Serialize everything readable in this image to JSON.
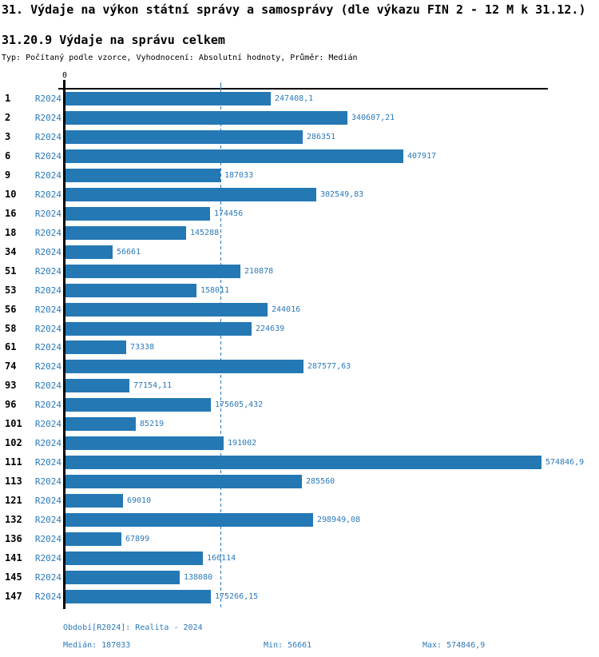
{
  "header": {
    "title": "31. Výdaje na výkon státní správy a samosprávy (dle výkazu FIN 2 - 12 M k 31.12.)",
    "subtitle": "31.20.9 Výdaje na správu celkem",
    "meta": "Typ: Počítaný podle vzorce, Vyhodnocení: Absolutní hodnoty, Průměr: Medián"
  },
  "chart_data": {
    "type": "bar",
    "orientation": "horizontal",
    "title": "31.20.9 Výdaje na správu celkem",
    "series_label": "R2024",
    "axis_zero_label": "0",
    "categories": [
      "1",
      "2",
      "3",
      "6",
      "9",
      "10",
      "16",
      "18",
      "34",
      "51",
      "53",
      "56",
      "58",
      "61",
      "74",
      "93",
      "96",
      "101",
      "102",
      "111",
      "113",
      "121",
      "132",
      "136",
      "141",
      "145",
      "147"
    ],
    "values": [
      247408.1,
      340607.21,
      286351,
      407917,
      187033,
      302549.83,
      174456,
      145288,
      56661,
      210878,
      158011,
      244016,
      224639,
      73338,
      287577.63,
      77154.11,
      175605.432,
      85219,
      191002,
      574846.9,
      285560,
      69010,
      298949.08,
      67899,
      166114,
      138080,
      175266.15
    ],
    "value_labels": [
      "247408,1",
      "340607,21",
      "286351",
      "407917",
      "187033",
      "302549,83",
      "174456",
      "145288",
      "56661",
      "210878",
      "158011",
      "244016",
      "224639",
      "73338",
      "287577,63",
      "77154,11",
      "175605,432",
      "85219",
      "191002",
      "574846,9",
      "285560",
      "69010",
      "298949,08",
      "67899",
      "166114",
      "138080",
      "175266,15"
    ],
    "median_value": 187033,
    "min_value": 56661,
    "max_value": 574846.9,
    "xlim": [
      0,
      585000
    ],
    "grid": false,
    "median_line_shown": true,
    "legend_position": "none",
    "bar_color": "#2478b4",
    "text_color": "#2b7abc",
    "axis_color": "#000000"
  },
  "footer": {
    "period": "Období[R2024]: Realita - 2024",
    "median": "Medián: 187033",
    "min": "Min: 56661",
    "max": "Max: 574846,9"
  }
}
